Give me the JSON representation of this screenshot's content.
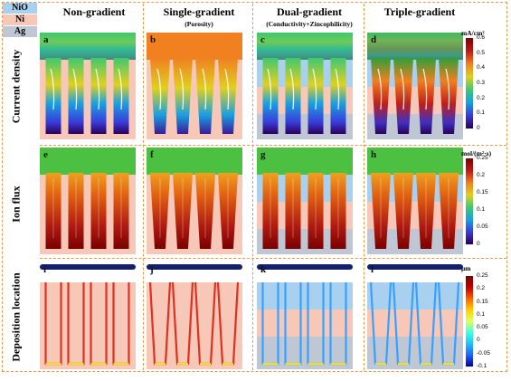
{
  "legend": {
    "items": [
      {
        "label": "NiO",
        "color": "#a9d0ef"
      },
      {
        "label": "Ni",
        "color": "#f7c7b8"
      },
      {
        "label": "Ag",
        "color": "#bfc6d4"
      }
    ]
  },
  "columns": [
    {
      "title": "Non-gradient",
      "subtitle": ""
    },
    {
      "title": "Single-gradient",
      "subtitle": "(Porosity)"
    },
    {
      "title": "Dual-gradient",
      "subtitle": "(Conductivity+Zincophilicity)"
    },
    {
      "title": "Triple-gradient",
      "subtitle": ""
    }
  ],
  "rows": [
    {
      "label": "Current density",
      "unit": "mA/cm²",
      "ticks": [
        "0.6",
        "0.5",
        "0.4",
        "0.3",
        "0.2",
        "0.1",
        "0"
      ],
      "panels": [
        "a",
        "b",
        "c",
        "d"
      ]
    },
    {
      "label": "Ion flux",
      "unit": "mol/(m²·s)",
      "ticks": [
        "0.25",
        "0.2",
        "0.15",
        "0.1",
        "0.05",
        "0"
      ],
      "panels": [
        "e",
        "f",
        "g",
        "h"
      ]
    },
    {
      "label": "Deposition location",
      "unit": "μm",
      "ticks": [
        "0.25",
        "0.2",
        "0.15",
        "0.1",
        "0.05",
        "0",
        "-0.05",
        "-0.1"
      ],
      "panels": [
        "i",
        "j",
        "k",
        "l"
      ]
    }
  ]
}
